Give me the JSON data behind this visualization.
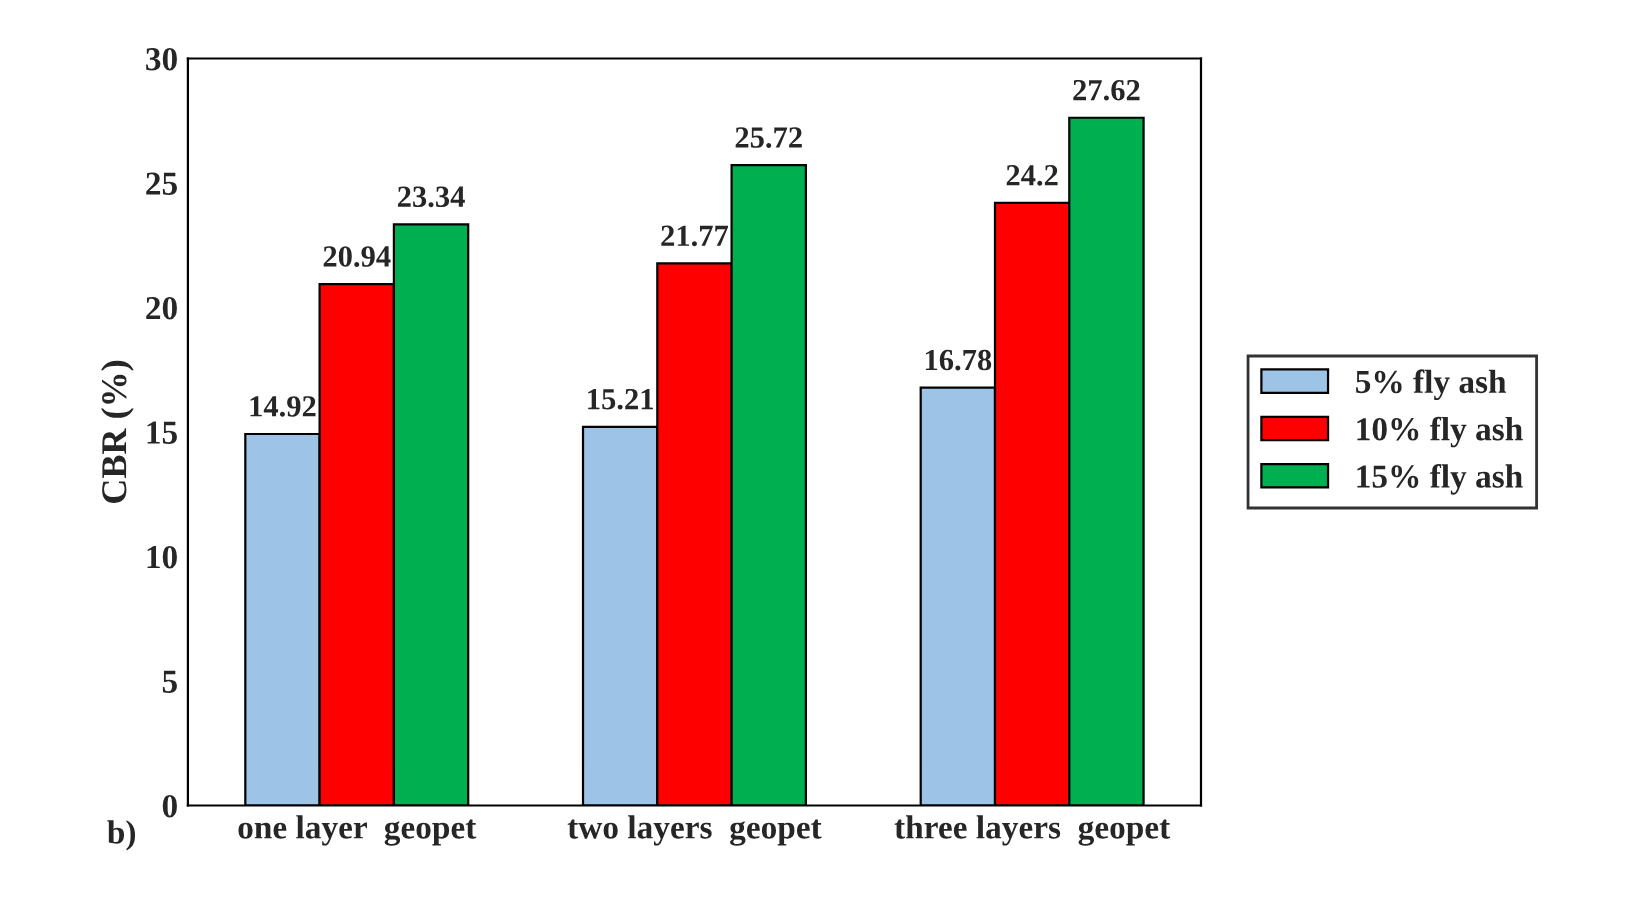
{
  "chart_data": {
    "type": "bar",
    "ylabel": "CBR (%)",
    "categories": [
      "one layer  geopet",
      "two layers  geopet",
      "three layers  geopet"
    ],
    "series": [
      {
        "name": "5% fly ash",
        "color": "#9dc3e6",
        "values": [
          14.92,
          15.21,
          16.78
        ]
      },
      {
        "name": "10% fly ash",
        "color": "#ff0000",
        "values": [
          20.94,
          21.77,
          24.2
        ]
      },
      {
        "name": "15% fly ash",
        "color": "#00b050",
        "values": [
          23.34,
          25.72,
          27.62
        ]
      }
    ],
    "ylim": [
      0,
      30
    ],
    "yticks": [
      0,
      5,
      10,
      15,
      20,
      25,
      30
    ],
    "data_labels": true,
    "legend": "right",
    "grid": false,
    "annotations": [
      "b)"
    ]
  }
}
